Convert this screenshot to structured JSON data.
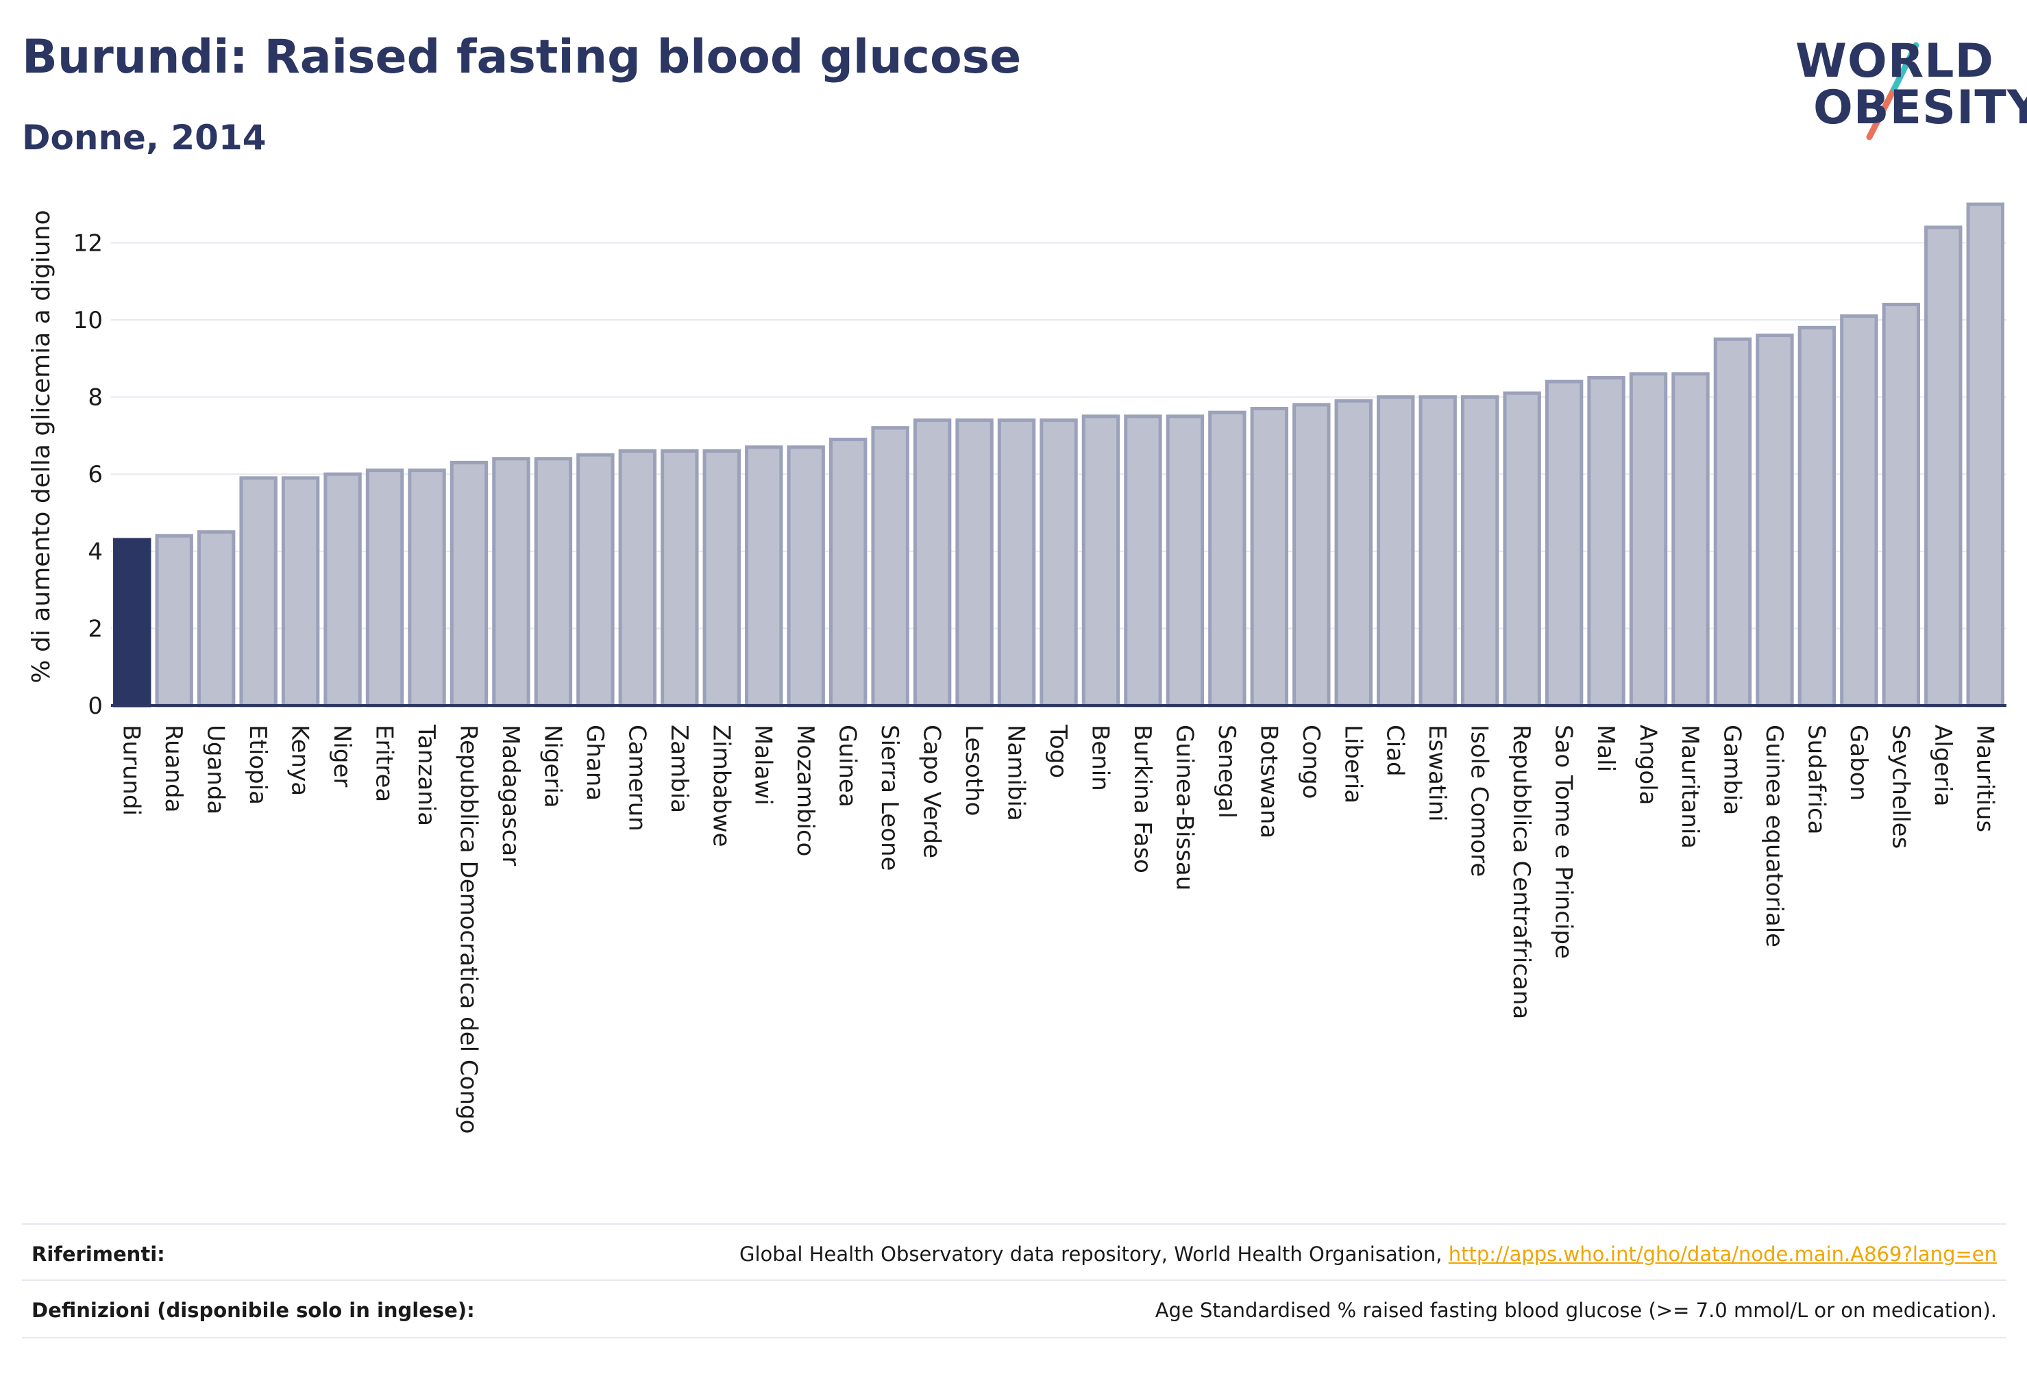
{
  "header": {
    "title": "Burundi: Raised fasting blood glucose",
    "subtitle": "Donne, 2014"
  },
  "logo": {
    "line1": "WORLD",
    "line2": "OBESITY",
    "accent_teal": "#3bbfbf",
    "accent_coral": "#e8735a"
  },
  "colors": {
    "highlight_bar": "#2b3663",
    "bar_fill": "#bcc0cf",
    "bar_stroke": "#9ba1b9",
    "axis": "#2b3663",
    "grid": "#e6e8ef",
    "link": "#f0a500"
  },
  "chart_data": {
    "type": "bar",
    "ylabel": "% di aumento della glicemia a digiuno",
    "xlabel": "",
    "ylim": [
      0,
      13.5
    ],
    "yticks": [
      0,
      2,
      4,
      6,
      8,
      10,
      12
    ],
    "grid": true,
    "highlight": "Burundi",
    "categories": [
      "Burundi",
      "Ruanda",
      "Uganda",
      "Etiopia",
      "Kenya",
      "Niger",
      "Eritrea",
      "Tanzania",
      "Repubblica Democratica del Congo",
      "Madagascar",
      "Nigeria",
      "Ghana",
      "Camerun",
      "Zambia",
      "Zimbabwe",
      "Malawi",
      "Mozambico",
      "Guinea",
      "Sierra Leone",
      "Capo Verde",
      "Lesotho",
      "Namibia",
      "Togo",
      "Benin",
      "Burkina Faso",
      "Guinea-Bissau",
      "Senegal",
      "Botswana",
      "Congo",
      "Liberia",
      "Ciad",
      "Eswatini",
      "Isole Comore",
      "Repubblica Centrafricana",
      "Sao Tome e Principe",
      "Mali",
      "Angola",
      "Mauritania",
      "Gambia",
      "Guinea equatoriale",
      "Sudafrica",
      "Gabon",
      "Seychelles",
      "Algeria",
      "Mauritius"
    ],
    "values": [
      4.3,
      4.4,
      4.5,
      5.9,
      5.9,
      6.0,
      6.1,
      6.1,
      6.3,
      6.4,
      6.4,
      6.5,
      6.6,
      6.6,
      6.6,
      6.7,
      6.7,
      6.9,
      7.2,
      7.4,
      7.4,
      7.4,
      7.4,
      7.5,
      7.5,
      7.5,
      7.6,
      7.7,
      7.8,
      7.9,
      8.0,
      8.0,
      8.0,
      8.1,
      8.4,
      8.5,
      8.6,
      8.6,
      9.5,
      9.6,
      9.8,
      10.1,
      10.4,
      12.4,
      13.0
    ]
  },
  "footer": {
    "references_label": "Riferimenti:",
    "references_text": "Global Health Observatory data repository, World Health Organisation, ",
    "references_link": "http://apps.who.int/gho/data/node.main.A869?lang=en",
    "definitions_label": "Definizioni (disponibile solo in inglese):",
    "definitions_text": "Age Standardised % raised fasting blood glucose (>= 7.0 mmol/L or on medication)."
  }
}
